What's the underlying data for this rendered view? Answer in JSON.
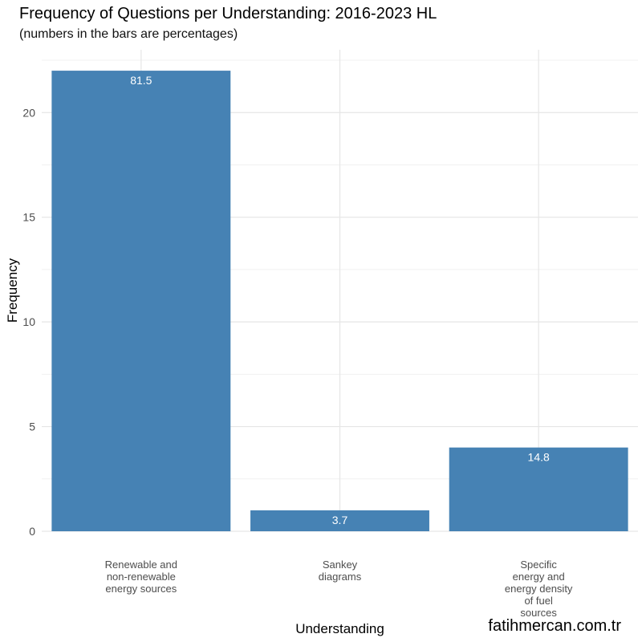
{
  "title": "Frequency of Questions per Understanding: 2016-2023 HL",
  "subtitle": "(numbers in the bars are percentages)",
  "watermark": "fatihmercan.com.tr",
  "chart_data": {
    "type": "bar",
    "title": "Frequency of Questions per Understanding: 2016-2023 HL",
    "subtitle": "(numbers in the bars are percentages)",
    "xlabel": "Understanding",
    "ylabel": "Frequency",
    "categories": [
      [
        "Renewable and",
        "non-renewable",
        "energy sources"
      ],
      [
        "Sankey",
        "diagrams"
      ],
      [
        "Specific",
        "energy and",
        "energy density",
        "of fuel",
        "sources"
      ]
    ],
    "values": [
      22,
      1,
      4
    ],
    "bar_labels": [
      "81.5",
      "3.7",
      "14.8"
    ],
    "yticks": [
      0,
      5,
      10,
      15,
      20
    ],
    "ylim": [
      0,
      23
    ],
    "grid": true,
    "bar_color": "#4682B4",
    "legend": "none"
  }
}
